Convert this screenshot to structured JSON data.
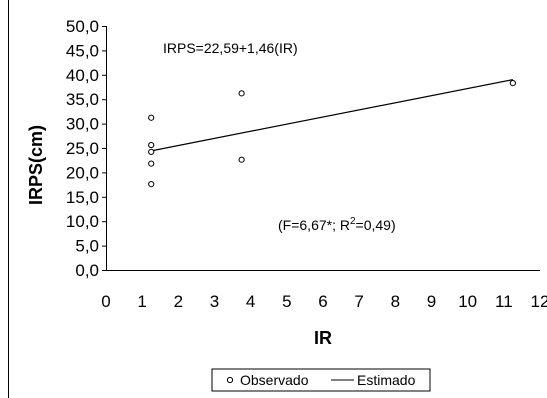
{
  "chart_data": {
    "type": "scatter",
    "title": "",
    "xlabel": "IR",
    "ylabel": "IRPS(cm)",
    "xlim": [
      0,
      12
    ],
    "ylim": [
      0,
      50
    ],
    "x_ticks": [
      "0",
      "1",
      "2",
      "3",
      "4",
      "5",
      "6",
      "7",
      "8",
      "9",
      "10",
      "11",
      "12"
    ],
    "y_ticks": [
      "0,0",
      "5,0",
      "10,0",
      "15,0",
      "20,0",
      "25,0",
      "30,0",
      "35,0",
      "40,0",
      "45,0",
      "50,0"
    ],
    "series": [
      {
        "name": "Observado",
        "kind": "scatter",
        "marker": "open-circle",
        "points": [
          {
            "x": 1.25,
            "y": 31.2
          },
          {
            "x": 1.25,
            "y": 25.6
          },
          {
            "x": 1.25,
            "y": 24.2
          },
          {
            "x": 1.25,
            "y": 21.8
          },
          {
            "x": 1.25,
            "y": 17.6
          },
          {
            "x": 3.75,
            "y": 36.2
          },
          {
            "x": 3.75,
            "y": 22.6
          },
          {
            "x": 11.25,
            "y": 38.3
          }
        ]
      },
      {
        "name": "Estimado",
        "kind": "line",
        "equation": {
          "intercept": 22.59,
          "slope": 1.46
        },
        "x_range": [
          1.25,
          11.25
        ]
      }
    ],
    "annotations": {
      "equation": "IRPS=22,59+1,46(IR)",
      "stats_prefix": "(F=6,67*; R",
      "stats_sup": "2",
      "stats_suffix": "=0,49)"
    },
    "legend": {
      "position": "bottom-center",
      "items": [
        "Observado",
        "Estimado"
      ]
    },
    "grid": false,
    "colors": {
      "marks": "#000000",
      "background": "#ffffff"
    }
  }
}
